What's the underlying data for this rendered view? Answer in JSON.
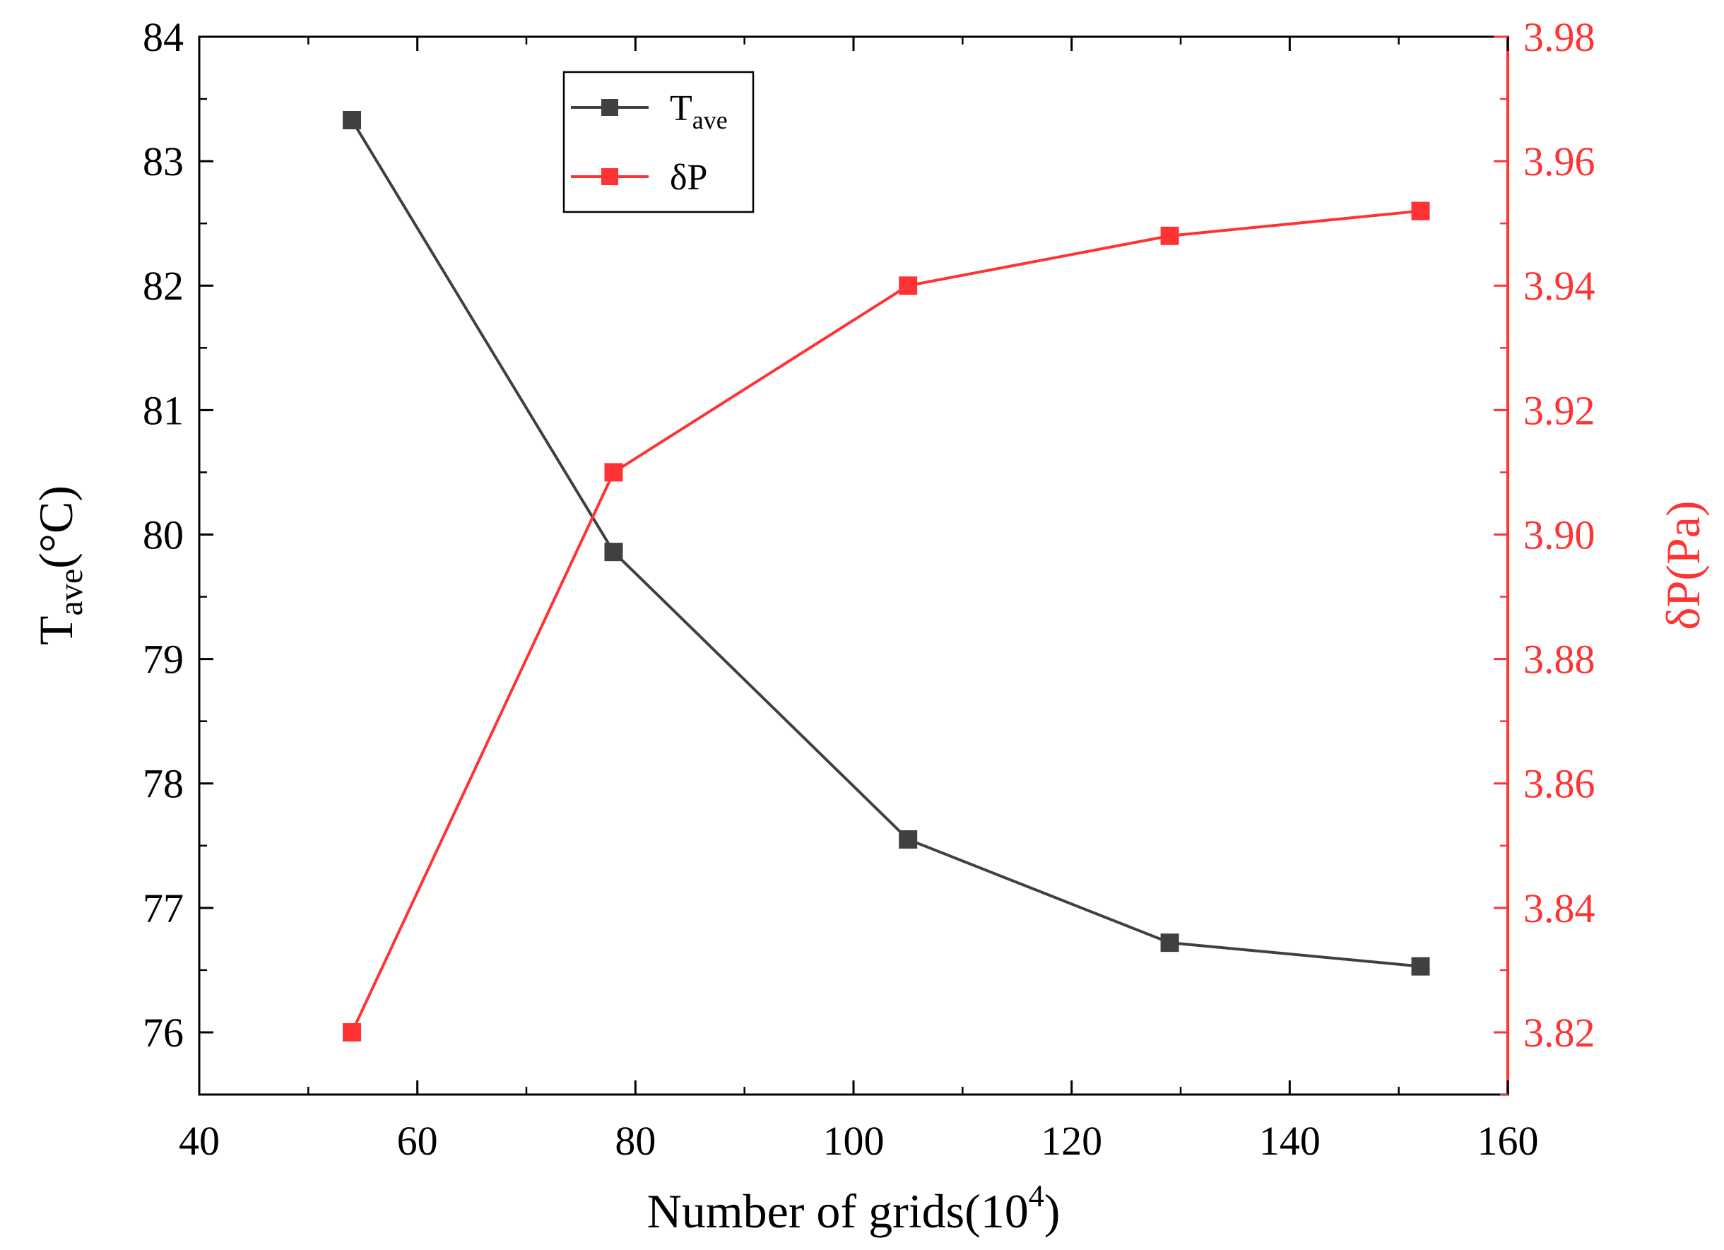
{
  "chart_data": {
    "type": "line",
    "dual_axis": true,
    "x": [
      54,
      78,
      105,
      129,
      152
    ],
    "xlim": [
      40,
      160
    ],
    "x_ticks": [
      "40",
      "60",
      "80",
      "100",
      "120",
      "140",
      "160"
    ],
    "x_tick_values": [
      40,
      60,
      80,
      100,
      120,
      140,
      160
    ],
    "xlabel": {
      "main": "Number of grids(10",
      "sup": "4",
      "tail": ")"
    },
    "ylabel_left": {
      "main": "T",
      "sub": "ave",
      "tail": "(°C)"
    },
    "ylabel_right": "δP(Pa)",
    "ylim_left": [
      75.5,
      84
    ],
    "ylim_right": [
      3.81,
      3.98
    ],
    "y_left_ticks": [
      "76",
      "77",
      "78",
      "79",
      "80",
      "81",
      "82",
      "83",
      "84"
    ],
    "y_left_tick_values": [
      76,
      77,
      78,
      79,
      80,
      81,
      82,
      83,
      84
    ],
    "y_right_ticks": [
      "3.82",
      "3.84",
      "3.86",
      "3.88",
      "3.90",
      "3.92",
      "3.94",
      "3.96",
      "3.98"
    ],
    "y_right_tick_values": [
      3.82,
      3.84,
      3.86,
      3.88,
      3.9,
      3.92,
      3.94,
      3.96,
      3.98
    ],
    "series": [
      {
        "name": "T",
        "name_sub": "ave",
        "axis": "left",
        "color": "#404040",
        "values": [
          83.33,
          79.86,
          77.55,
          76.72,
          76.53
        ]
      },
      {
        "name": "δP",
        "name_sub": "",
        "axis": "right",
        "color": "#ff3333",
        "values": [
          3.82,
          3.91,
          3.94,
          3.948,
          3.952
        ]
      }
    ],
    "right_axis_color": "#ff3333",
    "legend_position": "top-center-left"
  }
}
